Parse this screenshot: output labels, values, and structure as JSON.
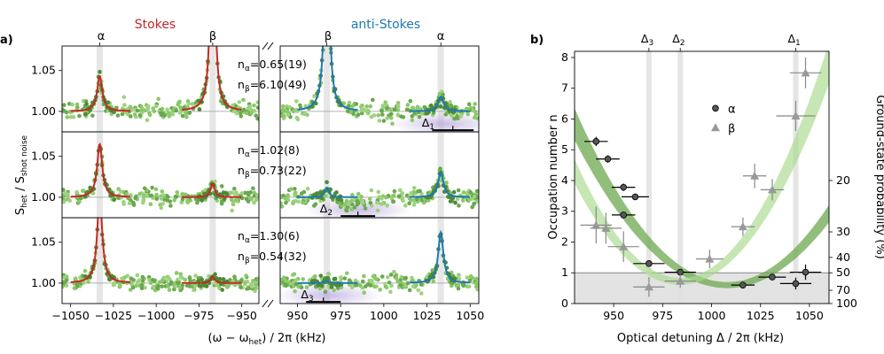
{
  "panel_a": {
    "label": "a)",
    "title_stokes": "Stokes",
    "title_antistokes": "anti-Stokes",
    "xlabel": "(ω − ω_het) / 2π (kHz)",
    "ylabel": "S_het / S_shot noise",
    "peak_labels": {
      "alpha": "α",
      "beta": "β"
    },
    "stokes_xlim": [
      -1055,
      -940
    ],
    "antistokes_xlim": [
      940,
      1055
    ],
    "ylim": [
      0.975,
      1.08
    ],
    "stokes_xticks": [
      -1050,
      -1025,
      -1000,
      -975,
      -950
    ],
    "antistokes_xticks": [
      950,
      975,
      1000,
      1025,
      1050
    ],
    "yticks": [
      1.0,
      1.05
    ],
    "peak_positions": {
      "stokes_alpha": -1033,
      "stokes_beta": -967,
      "antistokes_beta": 967,
      "antistokes_alpha": 1033
    },
    "rows": [
      {
        "n_alpha": "n_α=0.65(19)",
        "n_beta": "n_β=6.10(49)",
        "delta_label": "Δ1",
        "stokes_alpha_height": 0.043,
        "stokes_beta_height": 0.3,
        "antistokes_beta_height": 0.3,
        "antistokes_alpha_height": 0.018
      },
      {
        "n_alpha": "n_α=1.02(8)",
        "n_beta": "n_β=0.73(22)",
        "delta_label": "Δ2",
        "stokes_alpha_height": 0.065,
        "stokes_beta_height": 0.017,
        "antistokes_beta_height": 0.012,
        "antistokes_alpha_height": 0.031
      },
      {
        "n_alpha": "n_α=1.30(6)",
        "n_beta": "n_β=0.54(32)",
        "delta_label": "Δ3",
        "stokes_alpha_height": 0.105,
        "stokes_beta_height": 0.008,
        "antistokes_beta_height": 0.003,
        "antistokes_alpha_height": 0.062
      }
    ]
  },
  "chart_data": {
    "type": "scatter",
    "label": "b)",
    "xlabel": "Optical detuning Δ / 2π (kHz)",
    "ylabel": "Occupation number n",
    "ylabel_right": "Ground-state probability (%)",
    "xlim": [
      930,
      1060
    ],
    "ylim": [
      0,
      8.2
    ],
    "xticks": [
      950,
      975,
      1000,
      1025,
      1050
    ],
    "yticks": [
      0,
      1,
      2,
      3,
      4,
      5,
      6,
      7,
      8
    ],
    "right_ticks": [
      {
        "label": "20",
        "n": 4.0
      },
      {
        "label": "30",
        "n": 2.33
      },
      {
        "label": "40",
        "n": 1.5
      },
      {
        "label": "50",
        "n": 1.0
      },
      {
        "label": "70",
        "n": 0.43
      },
      {
        "label": "100",
        "n": 0.0
      }
    ],
    "reference_line_n": 1,
    "vlines": [
      {
        "label": "Δ3",
        "x": 968
      },
      {
        "label": "Δ2",
        "x": 984
      },
      {
        "label": "Δ1",
        "x": 1043
      }
    ],
    "series": [
      {
        "name": "α",
        "marker": "circle",
        "points": [
          {
            "x": 941,
            "y": 5.27,
            "xerr": 6,
            "yerr": 0.15
          },
          {
            "x": 947,
            "y": 4.7,
            "xerr": 6,
            "yerr": 0.12
          },
          {
            "x": 955,
            "y": 3.78,
            "xerr": 6,
            "yerr": 0.12
          },
          {
            "x": 961,
            "y": 3.47,
            "xerr": 7,
            "yerr": 0.1
          },
          {
            "x": 955,
            "y": 2.88,
            "xerr": 6,
            "yerr": 0.1
          },
          {
            "x": 968,
            "y": 1.3,
            "xerr": 8,
            "yerr": 0.06
          },
          {
            "x": 984,
            "y": 1.02,
            "xerr": 8,
            "yerr": 0.08
          },
          {
            "x": 1016,
            "y": 0.6,
            "xerr": 6,
            "yerr": 0.1
          },
          {
            "x": 1031,
            "y": 0.86,
            "xerr": 7,
            "yerr": 0.1
          },
          {
            "x": 1043,
            "y": 0.65,
            "xerr": 8,
            "yerr": 0.19
          },
          {
            "x": 1048,
            "y": 1.02,
            "xerr": 8,
            "yerr": 0.25
          }
        ]
      },
      {
        "name": "β",
        "marker": "triangle",
        "points": [
          {
            "x": 941,
            "y": 2.55,
            "xerr": 8,
            "yerr": 0.6
          },
          {
            "x": 946,
            "y": 2.45,
            "xerr": 8,
            "yerr": 0.5
          },
          {
            "x": 955,
            "y": 1.85,
            "xerr": 8,
            "yerr": 0.5
          },
          {
            "x": 968,
            "y": 0.54,
            "xerr": 8,
            "yerr": 0.32
          },
          {
            "x": 984,
            "y": 0.73,
            "xerr": 8,
            "yerr": 0.22
          },
          {
            "x": 999,
            "y": 1.45,
            "xerr": 7,
            "yerr": 0.3
          },
          {
            "x": 1016,
            "y": 2.5,
            "xerr": 6,
            "yerr": 0.3
          },
          {
            "x": 1022,
            "y": 4.15,
            "xerr": 6,
            "yerr": 0.4
          },
          {
            "x": 1031,
            "y": 3.7,
            "xerr": 6,
            "yerr": 0.35
          },
          {
            "x": 1043,
            "y": 6.1,
            "xerr": 10,
            "yerr": 0.49
          },
          {
            "x": 1048,
            "y": 7.5,
            "xerr": 8,
            "yerr": 0.5
          }
        ]
      }
    ],
    "fit_curves": [
      {
        "name": "α fit",
        "vertex_x": 1008,
        "vertex_y": 0.6,
        "curvature": 0.00086
      },
      {
        "name": "β fit",
        "vertex_x": 984,
        "vertex_y": 0.72,
        "curvature": 0.00123
      }
    ],
    "legend": [
      "α",
      "β"
    ],
    "legend_position": "upper-center"
  }
}
